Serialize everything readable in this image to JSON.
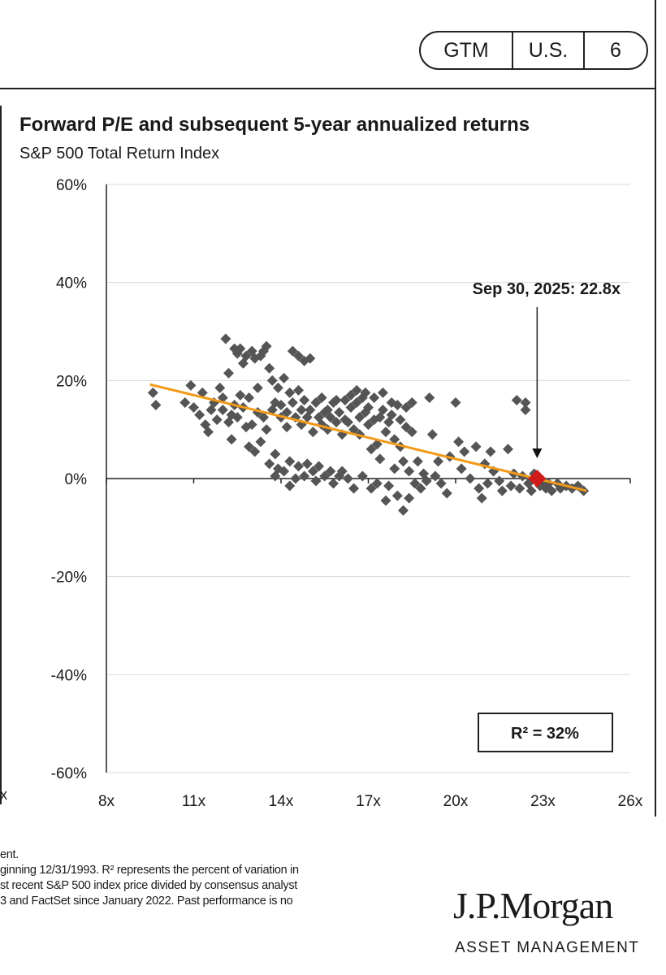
{
  "header": {
    "badge": [
      "GTM",
      "U.S.",
      "6"
    ]
  },
  "chart_data": {
    "type": "scatter",
    "title": "Forward P/E and subsequent 5-year annualized returns",
    "subtitle": "S&P 500 Total Return Index",
    "x_ticks": [
      "8x",
      "11x",
      "14x",
      "17x",
      "20x",
      "23x",
      "26x"
    ],
    "y_ticks": [
      "60%",
      "40%",
      "20%",
      "0%",
      "-20%",
      "-40%",
      "-60%"
    ],
    "xlim": [
      8,
      26
    ],
    "ylim": [
      -60,
      60
    ],
    "trendline": {
      "x": [
        9.5,
        24.5
      ],
      "y": [
        19.2,
        -2.5
      ]
    },
    "annotation": {
      "label": "Sep 30, 2025: 22.8x",
      "x": 22.8,
      "y": 0
    },
    "r_squared": "R² = 32%",
    "series": [
      {
        "points": [
          [
            9.6,
            17.5
          ],
          [
            9.7,
            15.0
          ],
          [
            10.7,
            15.5
          ],
          [
            10.9,
            19.0
          ],
          [
            11.0,
            14.5
          ],
          [
            11.2,
            13.0
          ],
          [
            11.3,
            17.5
          ],
          [
            11.4,
            11.0
          ],
          [
            11.5,
            9.5
          ],
          [
            11.6,
            14.0
          ],
          [
            11.7,
            15.5
          ],
          [
            11.8,
            12.0
          ],
          [
            11.9,
            18.5
          ],
          [
            12.0,
            14.0
          ],
          [
            12.0,
            16.5
          ],
          [
            12.1,
            28.5
          ],
          [
            12.2,
            11.5
          ],
          [
            12.2,
            21.5
          ],
          [
            12.3,
            8.0
          ],
          [
            12.3,
            13.0
          ],
          [
            12.4,
            26.5
          ],
          [
            12.4,
            15.0
          ],
          [
            12.5,
            25.5
          ],
          [
            12.5,
            12.5
          ],
          [
            12.6,
            17.0
          ],
          [
            12.6,
            26.5
          ],
          [
            12.7,
            14.5
          ],
          [
            12.7,
            23.5
          ],
          [
            12.8,
            25.0
          ],
          [
            12.8,
            10.5
          ],
          [
            12.9,
            6.5
          ],
          [
            12.9,
            16.5
          ],
          [
            13.0,
            26.0
          ],
          [
            13.0,
            11.0
          ],
          [
            13.1,
            5.5
          ],
          [
            13.1,
            24.5
          ],
          [
            13.2,
            13.5
          ],
          [
            13.2,
            18.5
          ],
          [
            13.3,
            25.0
          ],
          [
            13.3,
            7.5
          ],
          [
            13.4,
            26.0
          ],
          [
            13.4,
            12.5
          ],
          [
            13.5,
            27.0
          ],
          [
            13.5,
            10.0
          ],
          [
            13.6,
            22.5
          ],
          [
            13.6,
            3.0
          ],
          [
            13.7,
            14.0
          ],
          [
            13.7,
            20.0
          ],
          [
            13.8,
            15.5
          ],
          [
            13.8,
            5.0
          ],
          [
            13.8,
            0.5
          ],
          [
            13.9,
            18.5
          ],
          [
            13.9,
            2.0
          ],
          [
            14.0,
            12.5
          ],
          [
            14.0,
            15.0
          ],
          [
            14.1,
            20.5
          ],
          [
            14.1,
            1.5
          ],
          [
            14.2,
            13.5
          ],
          [
            14.2,
            10.5
          ],
          [
            14.3,
            3.5
          ],
          [
            14.3,
            17.5
          ],
          [
            14.3,
            -1.5
          ],
          [
            14.4,
            26.0
          ],
          [
            14.4,
            15.5
          ],
          [
            14.5,
            12.5
          ],
          [
            14.5,
            0.0
          ],
          [
            14.6,
            25.0
          ],
          [
            14.6,
            18.0
          ],
          [
            14.6,
            2.5
          ],
          [
            14.7,
            14.0
          ],
          [
            14.7,
            11.0
          ],
          [
            14.8,
            24.0
          ],
          [
            14.8,
            16.0
          ],
          [
            14.8,
            0.5
          ],
          [
            14.9,
            12.5
          ],
          [
            14.9,
            3.0
          ],
          [
            15.0,
            24.5
          ],
          [
            15.0,
            14.0
          ],
          [
            15.1,
            9.5
          ],
          [
            15.1,
            1.5
          ],
          [
            15.2,
            15.5
          ],
          [
            15.2,
            -0.5
          ],
          [
            15.3,
            12.5
          ],
          [
            15.3,
            2.5
          ],
          [
            15.4,
            16.5
          ],
          [
            15.4,
            11.0
          ],
          [
            15.5,
            13.5
          ],
          [
            15.5,
            0.5
          ],
          [
            15.6,
            14.0
          ],
          [
            15.6,
            10.0
          ],
          [
            15.7,
            1.5
          ],
          [
            15.7,
            12.5
          ],
          [
            15.8,
            15.5
          ],
          [
            15.8,
            -1.0
          ],
          [
            15.9,
            11.5
          ],
          [
            15.9,
            16.0
          ],
          [
            16.0,
            0.5
          ],
          [
            16.0,
            13.5
          ],
          [
            16.1,
            9.0
          ],
          [
            16.1,
            1.5
          ],
          [
            16.2,
            12.0
          ],
          [
            16.2,
            16.0
          ],
          [
            16.3,
            0.0
          ],
          [
            16.3,
            11.5
          ],
          [
            16.4,
            14.5
          ],
          [
            16.4,
            17.0
          ],
          [
            16.5,
            10.0
          ],
          [
            16.5,
            -2.0
          ],
          [
            16.6,
            15.5
          ],
          [
            16.6,
            18.0
          ],
          [
            16.7,
            12.5
          ],
          [
            16.7,
            9.0
          ],
          [
            16.8,
            16.5
          ],
          [
            16.8,
            0.5
          ],
          [
            16.9,
            13.5
          ],
          [
            16.9,
            17.5
          ],
          [
            17.0,
            11.0
          ],
          [
            17.0,
            14.5
          ],
          [
            17.1,
            6.0
          ],
          [
            17.1,
            -2.0
          ],
          [
            17.2,
            12.0
          ],
          [
            17.2,
            16.5
          ],
          [
            17.3,
            7.0
          ],
          [
            17.3,
            -1.0
          ],
          [
            17.4,
            12.5
          ],
          [
            17.4,
            4.0
          ],
          [
            17.5,
            17.5
          ],
          [
            17.5,
            14.0
          ],
          [
            17.6,
            -4.5
          ],
          [
            17.6,
            9.5
          ],
          [
            17.7,
            11.5
          ],
          [
            17.7,
            -1.5
          ],
          [
            17.8,
            15.5
          ],
          [
            17.8,
            13.0
          ],
          [
            17.9,
            8.0
          ],
          [
            17.9,
            2.0
          ],
          [
            18.0,
            15.0
          ],
          [
            18.0,
            -3.5
          ],
          [
            18.1,
            12.0
          ],
          [
            18.1,
            6.5
          ],
          [
            18.2,
            3.5
          ],
          [
            18.2,
            -6.5
          ],
          [
            18.3,
            14.5
          ],
          [
            18.3,
            10.5
          ],
          [
            18.4,
            -4.0
          ],
          [
            18.4,
            1.5
          ],
          [
            18.5,
            9.5
          ],
          [
            18.5,
            15.5
          ],
          [
            18.6,
            -1.0
          ],
          [
            18.7,
            3.5
          ],
          [
            18.8,
            -2.0
          ],
          [
            18.9,
            1.0
          ],
          [
            19.0,
            -0.5
          ],
          [
            19.1,
            16.5
          ],
          [
            19.2,
            9.0
          ],
          [
            19.3,
            0.5
          ],
          [
            19.4,
            3.5
          ],
          [
            19.5,
            -1.0
          ],
          [
            19.7,
            -3.0
          ],
          [
            19.8,
            4.5
          ],
          [
            20.0,
            15.5
          ],
          [
            20.1,
            7.5
          ],
          [
            20.2,
            2.0
          ],
          [
            20.3,
            5.5
          ],
          [
            20.5,
            0.0
          ],
          [
            20.7,
            6.5
          ],
          [
            20.8,
            -2.0
          ],
          [
            20.9,
            -4.0
          ],
          [
            21.0,
            3.0
          ],
          [
            21.1,
            -1.0
          ],
          [
            21.2,
            5.5
          ],
          [
            21.3,
            1.5
          ],
          [
            21.5,
            -0.5
          ],
          [
            21.6,
            -2.5
          ],
          [
            21.8,
            6.0
          ],
          [
            21.9,
            -1.5
          ],
          [
            22.0,
            1.0
          ],
          [
            22.1,
            16.0
          ],
          [
            22.2,
            -2.0
          ],
          [
            22.3,
            0.5
          ],
          [
            22.4,
            15.5
          ],
          [
            22.4,
            14.0
          ],
          [
            22.5,
            -1.0
          ],
          [
            22.6,
            -2.5
          ],
          [
            22.7,
            1.0
          ],
          [
            22.8,
            0.0
          ],
          [
            22.9,
            -1.5
          ],
          [
            23.0,
            -0.5
          ],
          [
            23.1,
            -2.0
          ],
          [
            23.2,
            -1.0
          ],
          [
            23.3,
            -2.5
          ],
          [
            23.5,
            -1.0
          ],
          [
            23.6,
            -2.0
          ],
          [
            23.8,
            -1.5
          ],
          [
            24.0,
            -2.0
          ],
          [
            24.2,
            -1.5
          ],
          [
            24.4,
            -2.5
          ]
        ]
      }
    ],
    "colors": {
      "points": "#555555",
      "trend": "#f29a18",
      "highlight": "#d11a1a"
    }
  },
  "footnote": {
    "lines": [
      "ent.",
      "ginning 12/31/1993. R² represents the percent of variation in",
      "st recent S&P 500 index price divided by consensus analyst",
      "3 and FactSet since January 2022. Past performance is no"
    ]
  },
  "edge_text": "x",
  "logo": {
    "name": "J.P.Morgan",
    "subtitle": "ASSET MANAGEMENT"
  }
}
